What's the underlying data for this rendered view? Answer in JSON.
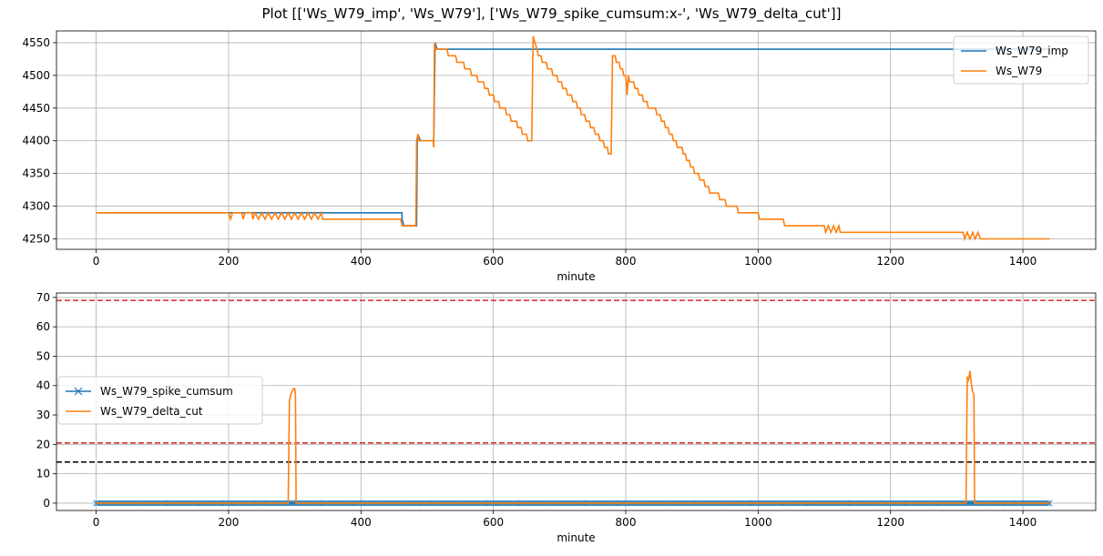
{
  "figure": {
    "title": "Plot [['Ws_W79_imp', 'Ws_W79'], ['Ws_W79_spike_cumsum:x-', 'Ws_W79_delta_cut']]"
  },
  "colors": {
    "blue": "#1f77b4",
    "orange": "#ff7f0e",
    "red": "#d62728",
    "black": "#000000",
    "grid": "#b0b0b0"
  },
  "chart_data": [
    {
      "type": "line",
      "xlabel": "minute",
      "ylabel": "",
      "xlim": [
        -60,
        1510
      ],
      "ylim": [
        4234,
        4568
      ],
      "xticks": [
        0,
        200,
        400,
        600,
        800,
        1000,
        1200,
        1400
      ],
      "yticks": [
        4250,
        4300,
        4350,
        4400,
        4450,
        4500,
        4550
      ],
      "grid": true,
      "legend_position": "top-right",
      "series": [
        {
          "name": "Ws_W79_imp",
          "color": "#1f77b4",
          "points": [
            [
              0,
              4290
            ],
            [
              462,
              4290
            ],
            [
              462,
              4280
            ],
            [
              465,
              4270
            ],
            [
              484,
              4270
            ],
            [
              485,
              4400
            ],
            [
              486,
              4410
            ],
            [
              490,
              4400
            ],
            [
              510,
              4400
            ],
            [
              512,
              4550
            ],
            [
              515,
              4540
            ],
            [
              1440,
              4540
            ]
          ]
        },
        {
          "name": "Ws_W79",
          "color": "#ff7f0e",
          "points": [
            [
              0,
              4290
            ],
            [
              200,
              4290
            ],
            [
              203,
              4280
            ],
            [
              206,
              4290
            ],
            [
              220,
              4290
            ],
            [
              222,
              4280
            ],
            [
              225,
              4290
            ],
            [
              235,
              4290
            ],
            [
              237,
              4280
            ],
            [
              240,
              4290
            ],
            [
              245,
              4280
            ],
            [
              250,
              4290
            ],
            [
              255,
              4280
            ],
            [
              260,
              4290
            ],
            [
              265,
              4280
            ],
            [
              270,
              4290
            ],
            [
              275,
              4280
            ],
            [
              280,
              4290
            ],
            [
              285,
              4280
            ],
            [
              290,
              4290
            ],
            [
              295,
              4280
            ],
            [
              300,
              4290
            ],
            [
              305,
              4280
            ],
            [
              310,
              4290
            ],
            [
              315,
              4280
            ],
            [
              320,
              4290
            ],
            [
              325,
              4280
            ],
            [
              330,
              4290
            ],
            [
              335,
              4280
            ],
            [
              340,
              4290
            ],
            [
              342,
              4280
            ],
            [
              460,
              4280
            ],
            [
              462,
              4270
            ],
            [
              483,
              4270
            ],
            [
              484,
              4400
            ],
            [
              486,
              4410
            ],
            [
              488,
              4400
            ],
            [
              509,
              4400
            ],
            [
              510,
              4390
            ],
            [
              511,
              4550
            ],
            [
              513,
              4540
            ],
            [
              530,
              4540
            ],
            [
              532,
              4530
            ],
            [
              543,
              4530
            ],
            [
              545,
              4520
            ],
            [
              555,
              4520
            ],
            [
              557,
              4510
            ],
            [
              565,
              4510
            ],
            [
              567,
              4500
            ],
            [
              575,
              4500
            ],
            [
              577,
              4490
            ],
            [
              585,
              4490
            ],
            [
              587,
              4480
            ],
            [
              592,
              4480
            ],
            [
              594,
              4470
            ],
            [
              600,
              4470
            ],
            [
              602,
              4460
            ],
            [
              608,
              4460
            ],
            [
              610,
              4450
            ],
            [
              618,
              4450
            ],
            [
              620,
              4440
            ],
            [
              625,
              4440
            ],
            [
              627,
              4430
            ],
            [
              635,
              4430
            ],
            [
              637,
              4420
            ],
            [
              642,
              4420
            ],
            [
              644,
              4410
            ],
            [
              650,
              4410
            ],
            [
              652,
              4400
            ],
            [
              658,
              4400
            ],
            [
              660,
              4560
            ],
            [
              663,
              4550
            ],
            [
              666,
              4540
            ],
            [
              668,
              4530
            ],
            [
              672,
              4530
            ],
            [
              674,
              4520
            ],
            [
              680,
              4520
            ],
            [
              682,
              4510
            ],
            [
              688,
              4510
            ],
            [
              690,
              4500
            ],
            [
              696,
              4500
            ],
            [
              698,
              4490
            ],
            [
              703,
              4490
            ],
            [
              705,
              4480
            ],
            [
              710,
              4480
            ],
            [
              712,
              4470
            ],
            [
              718,
              4470
            ],
            [
              720,
              4460
            ],
            [
              725,
              4460
            ],
            [
              727,
              4450
            ],
            [
              731,
              4450
            ],
            [
              733,
              4440
            ],
            [
              738,
              4440
            ],
            [
              740,
              4430
            ],
            [
              745,
              4430
            ],
            [
              747,
              4420
            ],
            [
              752,
              4420
            ],
            [
              754,
              4410
            ],
            [
              759,
              4410
            ],
            [
              761,
              4400
            ],
            [
              766,
              4400
            ],
            [
              768,
              4390
            ],
            [
              772,
              4390
            ],
            [
              774,
              4380
            ],
            [
              778,
              4380
            ],
            [
              780,
              4530
            ],
            [
              784,
              4530
            ],
            [
              786,
              4520
            ],
            [
              790,
              4520
            ],
            [
              792,
              4510
            ],
            [
              795,
              4510
            ],
            [
              797,
              4500
            ],
            [
              800,
              4500
            ],
            [
              802,
              4470
            ],
            [
              804,
              4500
            ],
            [
              806,
              4490
            ],
            [
              812,
              4490
            ],
            [
              814,
              4480
            ],
            [
              818,
              4480
            ],
            [
              820,
              4470
            ],
            [
              825,
              4470
            ],
            [
              827,
              4460
            ],
            [
              832,
              4460
            ],
            [
              834,
              4450
            ],
            [
              845,
              4450
            ],
            [
              847,
              4440
            ],
            [
              852,
              4440
            ],
            [
              854,
              4430
            ],
            [
              858,
              4430
            ],
            [
              860,
              4420
            ],
            [
              864,
              4420
            ],
            [
              866,
              4410
            ],
            [
              870,
              4410
            ],
            [
              872,
              4400
            ],
            [
              876,
              4400
            ],
            [
              878,
              4390
            ],
            [
              885,
              4390
            ],
            [
              887,
              4380
            ],
            [
              890,
              4380
            ],
            [
              892,
              4370
            ],
            [
              896,
              4370
            ],
            [
              898,
              4360
            ],
            [
              902,
              4360
            ],
            [
              904,
              4350
            ],
            [
              910,
              4350
            ],
            [
              912,
              4340
            ],
            [
              918,
              4340
            ],
            [
              920,
              4330
            ],
            [
              925,
              4330
            ],
            [
              927,
              4320
            ],
            [
              940,
              4320
            ],
            [
              942,
              4310
            ],
            [
              950,
              4310
            ],
            [
              952,
              4300
            ],
            [
              968,
              4300
            ],
            [
              970,
              4290
            ],
            [
              1000,
              4290
            ],
            [
              1002,
              4280
            ],
            [
              1038,
              4280
            ],
            [
              1040,
              4270
            ],
            [
              1100,
              4270
            ],
            [
              1102,
              4260
            ],
            [
              1106,
              4270
            ],
            [
              1110,
              4260
            ],
            [
              1114,
              4270
            ],
            [
              1118,
              4260
            ],
            [
              1122,
              4270
            ],
            [
              1124,
              4260
            ],
            [
              1310,
              4260
            ],
            [
              1312,
              4250
            ],
            [
              1316,
              4260
            ],
            [
              1320,
              4250
            ],
            [
              1324,
              4260
            ],
            [
              1328,
              4250
            ],
            [
              1332,
              4260
            ],
            [
              1336,
              4250
            ],
            [
              1440,
              4250
            ]
          ]
        }
      ]
    },
    {
      "type": "line",
      "xlabel": "minute",
      "ylabel": "",
      "xlim": [
        -60,
        1510
      ],
      "ylim": [
        -2.5,
        71.5
      ],
      "xticks": [
        0,
        200,
        400,
        600,
        800,
        1000,
        1200,
        1400
      ],
      "yticks": [
        0,
        10,
        20,
        30,
        40,
        50,
        60,
        70
      ],
      "grid": true,
      "legend_position": "center-left",
      "hlines": [
        {
          "y": 69,
          "color": "#d62728",
          "style": "dashed"
        },
        {
          "y": 20.5,
          "color": "#d62728",
          "style": "dashed"
        },
        {
          "y": 14,
          "color": "#000000",
          "style": "dashed"
        }
      ],
      "series": [
        {
          "name": "Ws_W79_spike_cumsum",
          "color": "#1f77b4",
          "marker": "x",
          "points": [
            [
              0,
              0
            ],
            [
              1440,
              0
            ]
          ]
        },
        {
          "name": "Ws_W79_delta_cut",
          "color": "#ff7f0e",
          "points": [
            [
              0,
              0
            ],
            [
              290,
              0
            ],
            [
              292,
              35
            ],
            [
              294,
              37
            ],
            [
              296,
              38
            ],
            [
              298,
              39
            ],
            [
              300,
              39
            ],
            [
              301,
              37
            ],
            [
              302,
              0
            ],
            [
              1314,
              0
            ],
            [
              1316,
              43
            ],
            [
              1318,
              42
            ],
            [
              1320,
              45
            ],
            [
              1322,
              41
            ],
            [
              1324,
              38
            ],
            [
              1326,
              37
            ],
            [
              1327,
              0
            ],
            [
              1440,
              0
            ]
          ]
        }
      ]
    }
  ]
}
